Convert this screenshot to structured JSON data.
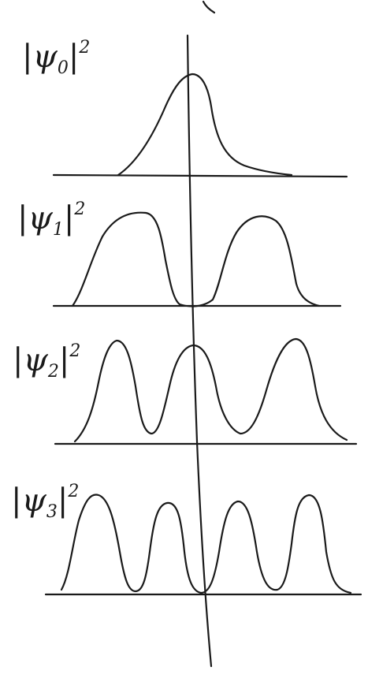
{
  "labels": [
    {
      "pre": "|ψ",
      "sub": "0",
      "post": "|",
      "sup": "2"
    },
    {
      "pre": "|ψ",
      "sub": "1",
      "post": "|",
      "sup": "2"
    },
    {
      "pre": "|ψ",
      "sub": "2",
      "post": "|",
      "sup": "2"
    },
    {
      "pre": "|ψ",
      "sub": "3",
      "post": "|",
      "sup": "2"
    }
  ],
  "colors": {
    "ink": "#1a1a1a",
    "paper": "#ffffff"
  }
}
